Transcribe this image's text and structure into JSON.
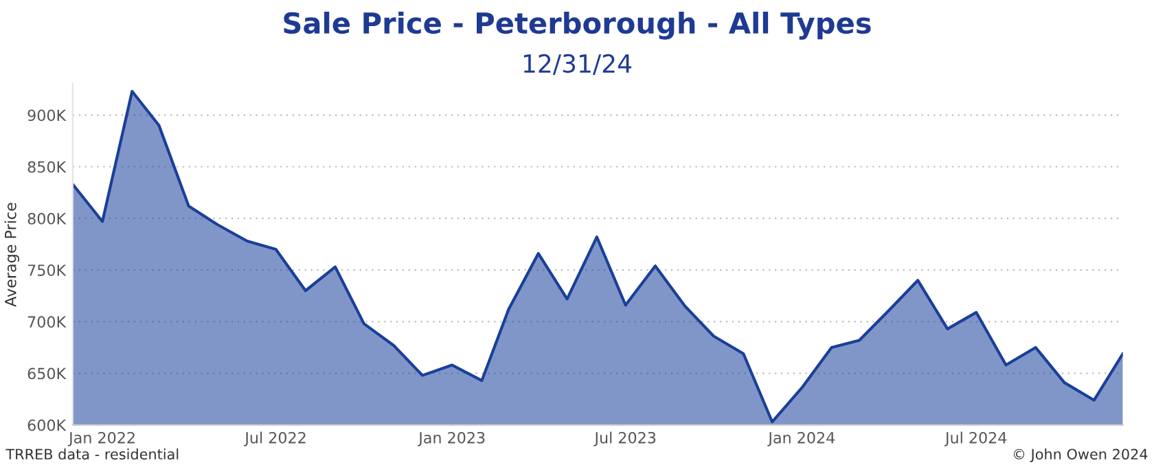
{
  "chart_data": {
    "type": "area",
    "title": "Sale Price - Peterborough - All Types",
    "subtitle": "12/31/24",
    "ylabel": "Average Price",
    "x": [
      "2021-12",
      "2022-01",
      "2022-02",
      "2022-03",
      "2022-04",
      "2022-05",
      "2022-06",
      "2022-07",
      "2022-08",
      "2022-09",
      "2022-10",
      "2022-11",
      "2022-12",
      "2023-01",
      "2023-02",
      "2023-03",
      "2023-04",
      "2023-05",
      "2023-06",
      "2023-07",
      "2023-08",
      "2023-09",
      "2023-10",
      "2023-11",
      "2023-12",
      "2024-01",
      "2024-02",
      "2024-03",
      "2024-04",
      "2024-05",
      "2024-06",
      "2024-07",
      "2024-08",
      "2024-09",
      "2024-10",
      "2024-11",
      "2024-12"
    ],
    "series": [
      {
        "color": "#1a3f9a",
        "values": [
          833000,
          797000,
          923000,
          890000,
          812000,
          794000,
          778000,
          770000,
          730000,
          753000,
          698000,
          677000,
          648000,
          658000,
          643000,
          712000,
          766000,
          722000,
          782000,
          716000,
          754000,
          715000,
          686000,
          669000,
          603000,
          636000,
          675000,
          682000,
          711000,
          740000,
          693000,
          709000,
          658000,
          675000,
          641000,
          624000,
          669000
        ]
      }
    ],
    "xlim": [
      "2021-12",
      "2024-12"
    ],
    "xticks": [
      {
        "value": "2022-01",
        "label": "Jan 2022"
      },
      {
        "value": "2022-07",
        "label": "Jul 2022"
      },
      {
        "value": "2023-01",
        "label": "Jan 2023"
      },
      {
        "value": "2023-07",
        "label": "Jul 2023"
      },
      {
        "value": "2024-01",
        "label": "Jan 2024"
      },
      {
        "value": "2024-07",
        "label": "Jul 2024"
      }
    ],
    "ylim": [
      600000,
      930000
    ],
    "yticks": [
      {
        "value": 600000,
        "label": "600K"
      },
      {
        "value": 650000,
        "label": "650K"
      },
      {
        "value": 700000,
        "label": "700K"
      },
      {
        "value": 750000,
        "label": "750K"
      },
      {
        "value": 800000,
        "label": "800K"
      },
      {
        "value": 850000,
        "label": "850K"
      },
      {
        "value": 900000,
        "label": "900K"
      }
    ],
    "grid": "y",
    "legend": false,
    "annotations": [
      "TRREB data - residential",
      "© John Owen 2024"
    ]
  }
}
